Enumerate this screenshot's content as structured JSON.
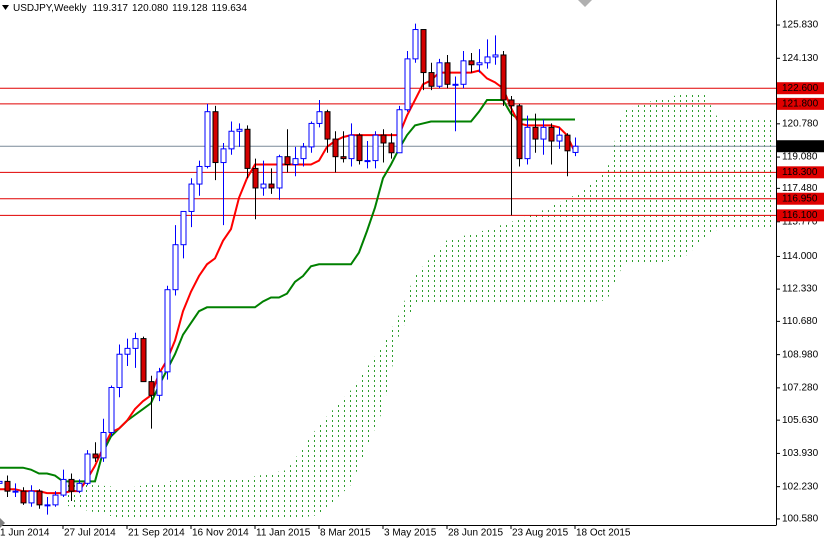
{
  "chart_data": {
    "type": "candlestick",
    "title": "USDJPY,Weekly",
    "quote": [
      {
        "value": 119.317,
        "label": "119.317"
      },
      {
        "value": 120.08,
        "label": "120.080"
      },
      {
        "value": 119.128,
        "label": "119.128"
      },
      {
        "value": 119.634,
        "label": "119.634"
      }
    ],
    "categories": [
      "1 Jun 2014",
      null,
      null,
      null,
      null,
      null,
      null,
      null,
      "27 Jul 2014",
      null,
      null,
      null,
      null,
      null,
      null,
      null,
      "21 Sep 2014",
      null,
      null,
      null,
      null,
      null,
      null,
      null,
      "16 Nov 2014",
      null,
      null,
      null,
      null,
      null,
      null,
      null,
      "11 Jan 2015",
      null,
      null,
      null,
      null,
      null,
      null,
      null,
      "8 Mar 2015",
      null,
      null,
      null,
      null,
      null,
      null,
      null,
      "3 May 2015",
      null,
      null,
      null,
      null,
      null,
      null,
      null,
      "28 Jun 2015",
      null,
      null,
      null,
      null,
      null,
      null,
      null,
      "23 Aug 2015",
      null,
      null,
      null,
      null,
      null,
      null,
      null,
      "18 Oct 2015"
    ],
    "open": [
      102.4,
      102.5,
      102.0,
      102.0,
      101.4,
      102.0,
      101.3,
      101.3,
      101.8,
      102.6,
      102.0,
      102.4,
      103.9,
      103.7,
      105.0,
      107.3,
      109.0,
      109.3,
      109.8,
      107.6,
      106.9,
      108.1,
      112.3,
      114.6,
      116.3,
      117.7,
      118.6,
      121.4,
      118.8,
      119.5,
      120.4,
      120.5,
      118.5,
      117.5,
      117.7,
      117.5,
      119.1,
      118.7,
      119.0,
      119.6,
      120.8,
      121.4,
      120.0,
      119.1,
      119.0,
      120.2,
      118.9,
      118.9,
      120.2,
      119.8,
      119.3,
      121.5,
      124.1,
      125.6,
      123.4,
      122.7,
      123.9,
      122.8,
      122.8,
      124.0,
      123.8,
      123.9,
      124.2,
      124.3,
      122.0,
      121.7,
      119.0,
      120.6,
      120.0,
      120.6,
      119.9,
      120.2,
      119.317
    ],
    "high": [
      102.8,
      102.8,
      102.4,
      102.2,
      102.3,
      102.1,
      101.7,
      102.0,
      103.1,
      102.9,
      102.6,
      104.1,
      104.5,
      105.7,
      107.4,
      109.5,
      109.8,
      110.1,
      109.9,
      107.9,
      108.3,
      112.5,
      115.6,
      116.3,
      118.0,
      118.9,
      121.8,
      121.7,
      119.8,
      120.9,
      120.8,
      120.7,
      119.0,
      118.9,
      118.5,
      119.2,
      120.5,
      119.6,
      119.8,
      120.9,
      122.0,
      121.5,
      120.4,
      120.4,
      120.8,
      120.3,
      119.9,
      120.4,
      120.5,
      120.3,
      121.7,
      124.5,
      125.9,
      125.6,
      123.9,
      124.1,
      124.3,
      123.2,
      124.5,
      124.4,
      124.6,
      125.1,
      125.3,
      124.5,
      122.2,
      121.8,
      121.2,
      121.3,
      121.0,
      120.8,
      120.6,
      120.3,
      120.08
    ],
    "low": [
      101.6,
      101.7,
      101.7,
      101.3,
      101.2,
      101.1,
      100.8,
      101.2,
      101.7,
      101.5,
      101.9,
      102.3,
      103.5,
      103.5,
      104.8,
      106.8,
      108.4,
      108.3,
      107.6,
      105.2,
      106.6,
      107.7,
      112.0,
      113.9,
      115.5,
      117.1,
      118.5,
      117.9,
      115.6,
      119.2,
      119.6,
      118.0,
      115.9,
      117.1,
      117.2,
      116.9,
      118.3,
      118.1,
      118.6,
      119.3,
      120.6,
      119.3,
      118.3,
      118.8,
      118.6,
      118.7,
      118.5,
      118.5,
      118.8,
      119.0,
      119.3,
      121.4,
      123.9,
      122.5,
      122.5,
      122.6,
      122.6,
      120.4,
      122.6,
      123.4,
      123.4,
      123.6,
      123.8,
      121.7,
      116.1,
      118.6,
      118.7,
      119.3,
      119.2,
      118.7,
      119.5,
      118.1,
      119.128
    ],
    "close": [
      102.5,
      102.0,
      102.0,
      101.4,
      102.0,
      101.3,
      101.3,
      101.8,
      102.6,
      102.0,
      102.4,
      103.9,
      103.7,
      105.0,
      107.3,
      109.0,
      109.3,
      109.8,
      107.6,
      106.9,
      108.1,
      112.3,
      114.6,
      116.3,
      117.7,
      118.6,
      121.4,
      118.8,
      119.5,
      120.4,
      120.5,
      118.5,
      117.5,
      117.7,
      117.5,
      119.1,
      118.7,
      119.0,
      119.6,
      120.8,
      121.4,
      120.0,
      119.1,
      119.0,
      120.2,
      118.9,
      118.9,
      120.2,
      119.8,
      119.3,
      121.5,
      124.1,
      125.6,
      123.4,
      122.7,
      123.9,
      122.8,
      122.8,
      124.0,
      123.8,
      123.9,
      124.2,
      124.3,
      122.0,
      121.7,
      119.0,
      120.6,
      120.0,
      120.6,
      119.9,
      120.2,
      119.4,
      119.634
    ],
    "up_color": "#0000ff",
    "down_color": "#d40000",
    "tenkan": {
      "color": "#ff0000",
      "values": [
        102.1,
        102.1,
        102.1,
        102.0,
        102.0,
        102.0,
        101.9,
        101.9,
        101.9,
        102.0,
        102.0,
        102.6,
        103.3,
        104.2,
        105.0,
        105.2,
        105.6,
        106.2,
        106.6,
        106.9,
        108.0,
        108.7,
        109.7,
        111.2,
        112.2,
        113.0,
        113.6,
        113.9,
        114.8,
        115.4,
        117.0,
        118.0,
        118.7,
        118.7,
        118.7,
        118.7,
        118.7,
        118.7,
        118.7,
        118.7,
        118.9,
        119.6,
        119.9,
        120.1,
        120.2,
        120.2,
        120.2,
        120.2,
        120.2,
        120.2,
        120.2,
        121.2,
        122.0,
        122.8,
        123.0,
        123.4,
        123.4,
        123.4,
        123.4,
        123.4,
        123.5,
        123.1,
        122.9,
        122.6,
        121.6,
        120.8,
        120.7,
        120.7,
        120.7,
        120.7,
        120.6,
        120.2,
        119.3
      ]
    },
    "kijun": {
      "color": "#008000",
      "values": [
        103.2,
        103.2,
        103.2,
        103.2,
        103.1,
        102.9,
        102.9,
        102.8,
        102.5,
        102.5,
        102.5,
        102.5,
        102.5,
        104.0,
        104.8,
        105.2,
        105.6,
        105.9,
        106.2,
        106.5,
        107.4,
        108.2,
        109.0,
        110.0,
        110.6,
        111.2,
        111.4,
        111.4,
        111.4,
        111.4,
        111.4,
        111.4,
        111.4,
        111.7,
        111.9,
        111.9,
        112.1,
        112.7,
        113.0,
        113.5,
        113.6,
        113.6,
        113.6,
        113.6,
        113.6,
        114.2,
        115.3,
        116.5,
        118.0,
        118.7,
        119.5,
        120.2,
        120.7,
        120.8,
        120.9,
        120.9,
        120.9,
        120.9,
        120.9,
        120.9,
        121.4,
        122.0,
        122.0,
        122.0,
        121.3,
        121.0,
        121.0,
        121.0,
        121.0,
        121.0,
        121.0,
        121.0,
        121.0
      ]
    },
    "cloud": {
      "color": "#2e9e2e",
      "x": [
        8,
        16,
        24,
        31,
        36,
        40,
        44,
        48,
        50,
        52,
        56,
        60,
        64,
        68,
        72,
        76,
        78,
        82,
        86,
        88,
        90,
        97
      ],
      "upper": [
        102.47,
        102.16,
        102.68,
        102.68,
        103.08,
        105.38,
        107.17,
        109.47,
        111.01,
        113.05,
        114.84,
        115.25,
        115.76,
        116.37,
        117.14,
        118.42,
        121.49,
        122.0,
        122.35,
        122.41,
        120.97,
        120.97
      ],
      "lower": [
        101.3,
        100.53,
        100.53,
        100.53,
        100.53,
        100.78,
        102.32,
        106.15,
        109.98,
        111.52,
        111.52,
        111.52,
        111.52,
        111.52,
        111.52,
        111.77,
        113.56,
        113.56,
        114.07,
        114.84,
        115.45,
        115.45
      ]
    },
    "levels": {
      "color": "#e00000",
      "items": [
        {
          "value": 122.6,
          "label": "122.600"
        },
        {
          "value": 121.8,
          "label": "121.800"
        },
        {
          "value": 118.3,
          "label": "118.300"
        },
        {
          "value": 116.95,
          "label": "116.950"
        },
        {
          "value": 116.1,
          "label": "116.100"
        }
      ]
    },
    "last_price": {
      "value": 119.634,
      "label": "119.634",
      "color": "#7a8a99"
    },
    "ylim": [
      100.27,
      127.11
    ],
    "yticks": [
      {
        "value": 125.83,
        "label": "125.830"
      },
      {
        "value": 124.13,
        "label": "124.130"
      },
      {
        "value": 120.78,
        "label": "120.780"
      },
      {
        "value": 119.08,
        "label": "119.080"
      },
      {
        "value": 117.48,
        "label": "117.480"
      },
      {
        "value": 115.77,
        "label": "115.770"
      },
      {
        "value": 114.0,
        "label": "114.000"
      },
      {
        "value": 112.33,
        "label": "112.330"
      },
      {
        "value": 110.68,
        "label": "110.680"
      },
      {
        "value": 108.98,
        "label": "108.980"
      },
      {
        "value": 107.28,
        "label": "107.280"
      },
      {
        "value": 105.63,
        "label": "105.630"
      },
      {
        "value": 103.93,
        "label": "103.930"
      },
      {
        "value": 102.23,
        "label": "102.230"
      },
      {
        "value": 100.58,
        "label": "100.580"
      }
    ]
  }
}
